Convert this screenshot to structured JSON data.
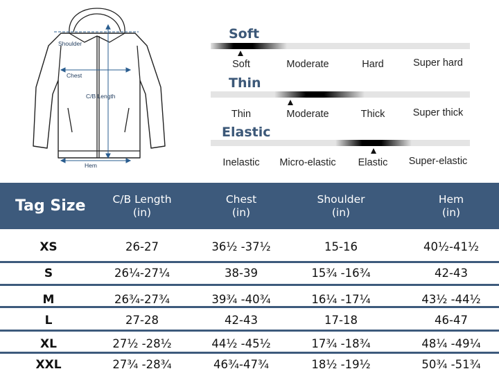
{
  "diagram": {
    "labels": {
      "shoulder": "Shoulder",
      "chest": "Chest",
      "length": "C/B Length",
      "hem": "Hem"
    }
  },
  "properties": [
    {
      "title": "Soft",
      "options": [
        "Soft",
        "Moderate",
        "Hard",
        "Super hard"
      ],
      "selected_index": 0
    },
    {
      "title": "Thin",
      "options": [
        "Thin",
        "Moderate",
        "Thick",
        "Super thick"
      ],
      "selected_index": 1
    },
    {
      "title": "Elastic",
      "options": [
        "Inelastic",
        "Micro-elastic",
        "Elastic",
        "Super-elastic"
      ],
      "selected_index": 2
    }
  ],
  "table": {
    "headers": [
      {
        "main": "Tag Size",
        "unit": ""
      },
      {
        "main": "C/B Length",
        "unit": "(in)"
      },
      {
        "main": "Chest",
        "unit": "(in)"
      },
      {
        "main": "Shoulder",
        "unit": "(in)"
      },
      {
        "main": "Hem",
        "unit": "(in)"
      }
    ],
    "rows": [
      [
        "XS",
        "26-27",
        "36½ -37½",
        "15-16",
        "40½-41½"
      ],
      [
        "S",
        "26¼-27¼",
        "38-39",
        "15¾ -16¾",
        "42-43"
      ],
      [
        "M",
        "26¾-27¾",
        "39¾ -40¾",
        "16¼ -17¼",
        "43½ -44½"
      ],
      [
        "L",
        "27-28",
        "42-43",
        "17-18",
        "46-47"
      ],
      [
        "XL",
        "27½ -28½",
        "44½ -45½",
        "17¾ -18¾",
        "48¼ -49¼"
      ],
      [
        "XXL",
        "27¾ -28¾",
        "46¾-47¾",
        "18½ -19½",
        "50¾ -51¾"
      ]
    ]
  },
  "colors": {
    "header_bg": "#3d5a7c",
    "title_color": "#3c5878",
    "bar_track": "#e4e4e4",
    "bar_highlight": "#000000"
  }
}
